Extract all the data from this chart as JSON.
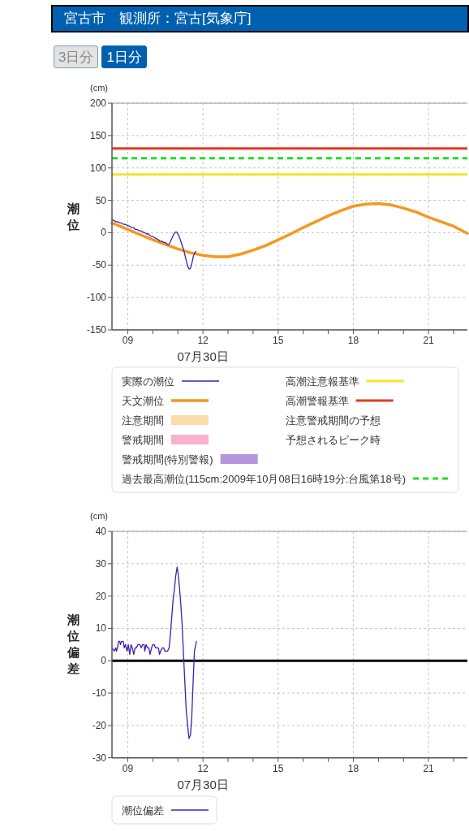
{
  "chart_data": [
    {
      "type": "other",
      "title": "宮古市　観測所：宮古[気象庁]",
      "annotations": [
        "3日分",
        "1日分"
      ]
    },
    {
      "type": "line",
      "ylabel": "潮位",
      "xlabel": "07月30日",
      "annotations": [
        "(cm)",
        "注意警戒期間の予想",
        "予想されるピーク時"
      ],
      "xlim": [
        8.37,
        22.55
      ],
      "xticks": [
        {
          "value": 9,
          "label": "09"
        },
        {
          "value": 10,
          "label": null
        },
        {
          "value": 11,
          "label": null
        },
        12,
        {
          "value": 13,
          "label": null
        },
        {
          "value": 14,
          "label": null
        },
        15,
        {
          "value": 16,
          "label": null
        },
        {
          "value": 17,
          "label": null
        },
        18,
        {
          "value": 19,
          "label": null
        },
        {
          "value": 20,
          "label": null
        },
        21,
        {
          "value": 22,
          "label": null
        }
      ],
      "ylim": [
        -150,
        200
      ],
      "yticks": [
        -150,
        -100,
        -50,
        0,
        50,
        100,
        150,
        200
      ],
      "grid": true,
      "legend": "bottom",
      "series": [
        {
          "name": "実際の潮位",
          "type": "line",
          "color": "#4020b0",
          "x": [
            8.37,
            8.45,
            8.52,
            8.6,
            8.68,
            8.75,
            8.83,
            8.9,
            9.0,
            9.08,
            9.15,
            9.23,
            9.3,
            9.38,
            9.45,
            9.53,
            9.6,
            9.68,
            9.75,
            9.83,
            9.9,
            9.98,
            10.05,
            10.13,
            10.2,
            10.28,
            10.35,
            10.43,
            10.5,
            10.58,
            10.64,
            10.7,
            10.77,
            10.84,
            10.9,
            10.96,
            11.02,
            11.08,
            11.14,
            11.2,
            11.26,
            11.32,
            11.38,
            11.44,
            11.5,
            11.56,
            11.62,
            11.67,
            11.72
          ],
          "values": [
            20,
            19,
            17,
            17,
            15,
            15,
            13,
            13,
            11,
            10,
            8,
            8,
            5,
            5,
            3,
            3,
            1,
            0,
            -2,
            -2,
            -5,
            -6,
            -7,
            -9,
            -10,
            -13,
            -13,
            -15,
            -15,
            -18,
            -18,
            -14,
            -8,
            -2,
            1,
            1,
            -3,
            -9,
            -16,
            -23,
            -31,
            -41,
            -50,
            -56,
            -55,
            -47,
            -36,
            -31,
            -29
          ]
        },
        {
          "name": "天文潮位",
          "type": "line",
          "color": "#f5981e",
          "x": [
            8.37,
            9,
            9.5,
            10,
            10.5,
            11,
            11.5,
            12,
            12.5,
            13,
            13.5,
            14,
            14.5,
            15,
            15.5,
            16,
            16.5,
            17,
            17.5,
            18,
            18.5,
            19,
            19.5,
            20,
            20.5,
            21,
            21.5,
            22,
            22.55
          ],
          "values": [
            15,
            5,
            -3,
            -11,
            -18,
            -25,
            -31,
            -35,
            -37,
            -37,
            -33,
            -27,
            -20,
            -11,
            -2,
            8,
            17,
            26,
            34,
            41,
            44,
            45,
            43,
            38,
            32,
            24,
            17,
            10,
            -1
          ]
        },
        {
          "name": "注意期間",
          "type": "area",
          "color": "#fddcac"
        },
        {
          "name": "警戒期間",
          "type": "area",
          "color": "#fbb1cc"
        },
        {
          "name": "警戒期間(特別警報)",
          "type": "area",
          "color": "#b497dd"
        }
      ],
      "ref_lines": [
        {
          "axis": "y",
          "value": 90,
          "label": "高潮注意報基準",
          "color": "#f2e431"
        },
        {
          "axis": "y",
          "value": 130,
          "label": "高潮警報基準",
          "color": "#e23b22"
        },
        {
          "axis": "y",
          "value": 115,
          "label": "過去最高潮位(115cm:2009年10月08日16時19分:台風第18号)",
          "color": "#22dd22",
          "line_style": "dashed"
        }
      ]
    },
    {
      "type": "line",
      "ylabel": "潮位偏差",
      "xlabel": "07月30日",
      "annotations": [
        "(cm)"
      ],
      "xlim": [
        8.37,
        22.55
      ],
      "xticks": [
        {
          "value": 9,
          "label": "09"
        },
        {
          "value": 10,
          "label": null
        },
        {
          "value": 11,
          "label": null
        },
        12,
        {
          "value": 13,
          "label": null
        },
        {
          "value": 14,
          "label": null
        },
        15,
        {
          "value": 16,
          "label": null
        },
        {
          "value": 17,
          "label": null
        },
        18,
        {
          "value": 19,
          "label": null
        },
        {
          "value": 20,
          "label": null
        },
        21,
        {
          "value": 22,
          "label": null
        }
      ],
      "ylim": [
        -30,
        40
      ],
      "yticks": [
        -30,
        -20,
        -10,
        0,
        10,
        20,
        30,
        40
      ],
      "grid": true,
      "legend": "bottom",
      "series": [
        {
          "name": "潮位偏差",
          "type": "line",
          "color": "#4020b0",
          "x": [
            8.37,
            8.46,
            8.52,
            8.55,
            8.59,
            8.63,
            8.68,
            8.71,
            8.75,
            8.82,
            8.86,
            8.91,
            8.97,
            9.02,
            9.08,
            9.13,
            9.18,
            9.24,
            9.29,
            9.34,
            9.41,
            9.48,
            9.54,
            9.59,
            9.65,
            9.68,
            9.73,
            9.79,
            9.84,
            9.89,
            9.95,
            10.0,
            10.05,
            10.11,
            10.16,
            10.22,
            10.27,
            10.31,
            10.38,
            10.43,
            10.48,
            10.54,
            10.59,
            10.65,
            10.7,
            10.75,
            10.81,
            10.86,
            10.91,
            10.97,
            11.01,
            11.07,
            11.12,
            11.17,
            11.23,
            11.28,
            11.33,
            11.39,
            11.44,
            11.5,
            11.55,
            11.6,
            11.66,
            11.74
          ],
          "values": [
            4,
            3,
            4,
            3,
            4,
            6,
            6,
            5,
            6,
            6,
            4,
            5,
            3,
            5,
            2,
            5,
            4,
            2,
            4,
            4,
            5,
            5,
            4,
            5,
            5,
            3,
            5,
            4,
            4,
            2,
            4,
            5,
            5,
            4,
            4,
            4,
            2,
            3,
            4,
            4,
            3,
            3,
            3,
            4,
            8,
            13,
            19,
            22,
            26,
            29,
            27,
            22,
            17,
            11,
            1,
            -7,
            -15,
            -20,
            -24,
            -23,
            -18,
            -8,
            3,
            6
          ]
        }
      ],
      "ref_lines": [
        {
          "axis": "y",
          "value": 0,
          "color": "#000000"
        }
      ]
    }
  ]
}
